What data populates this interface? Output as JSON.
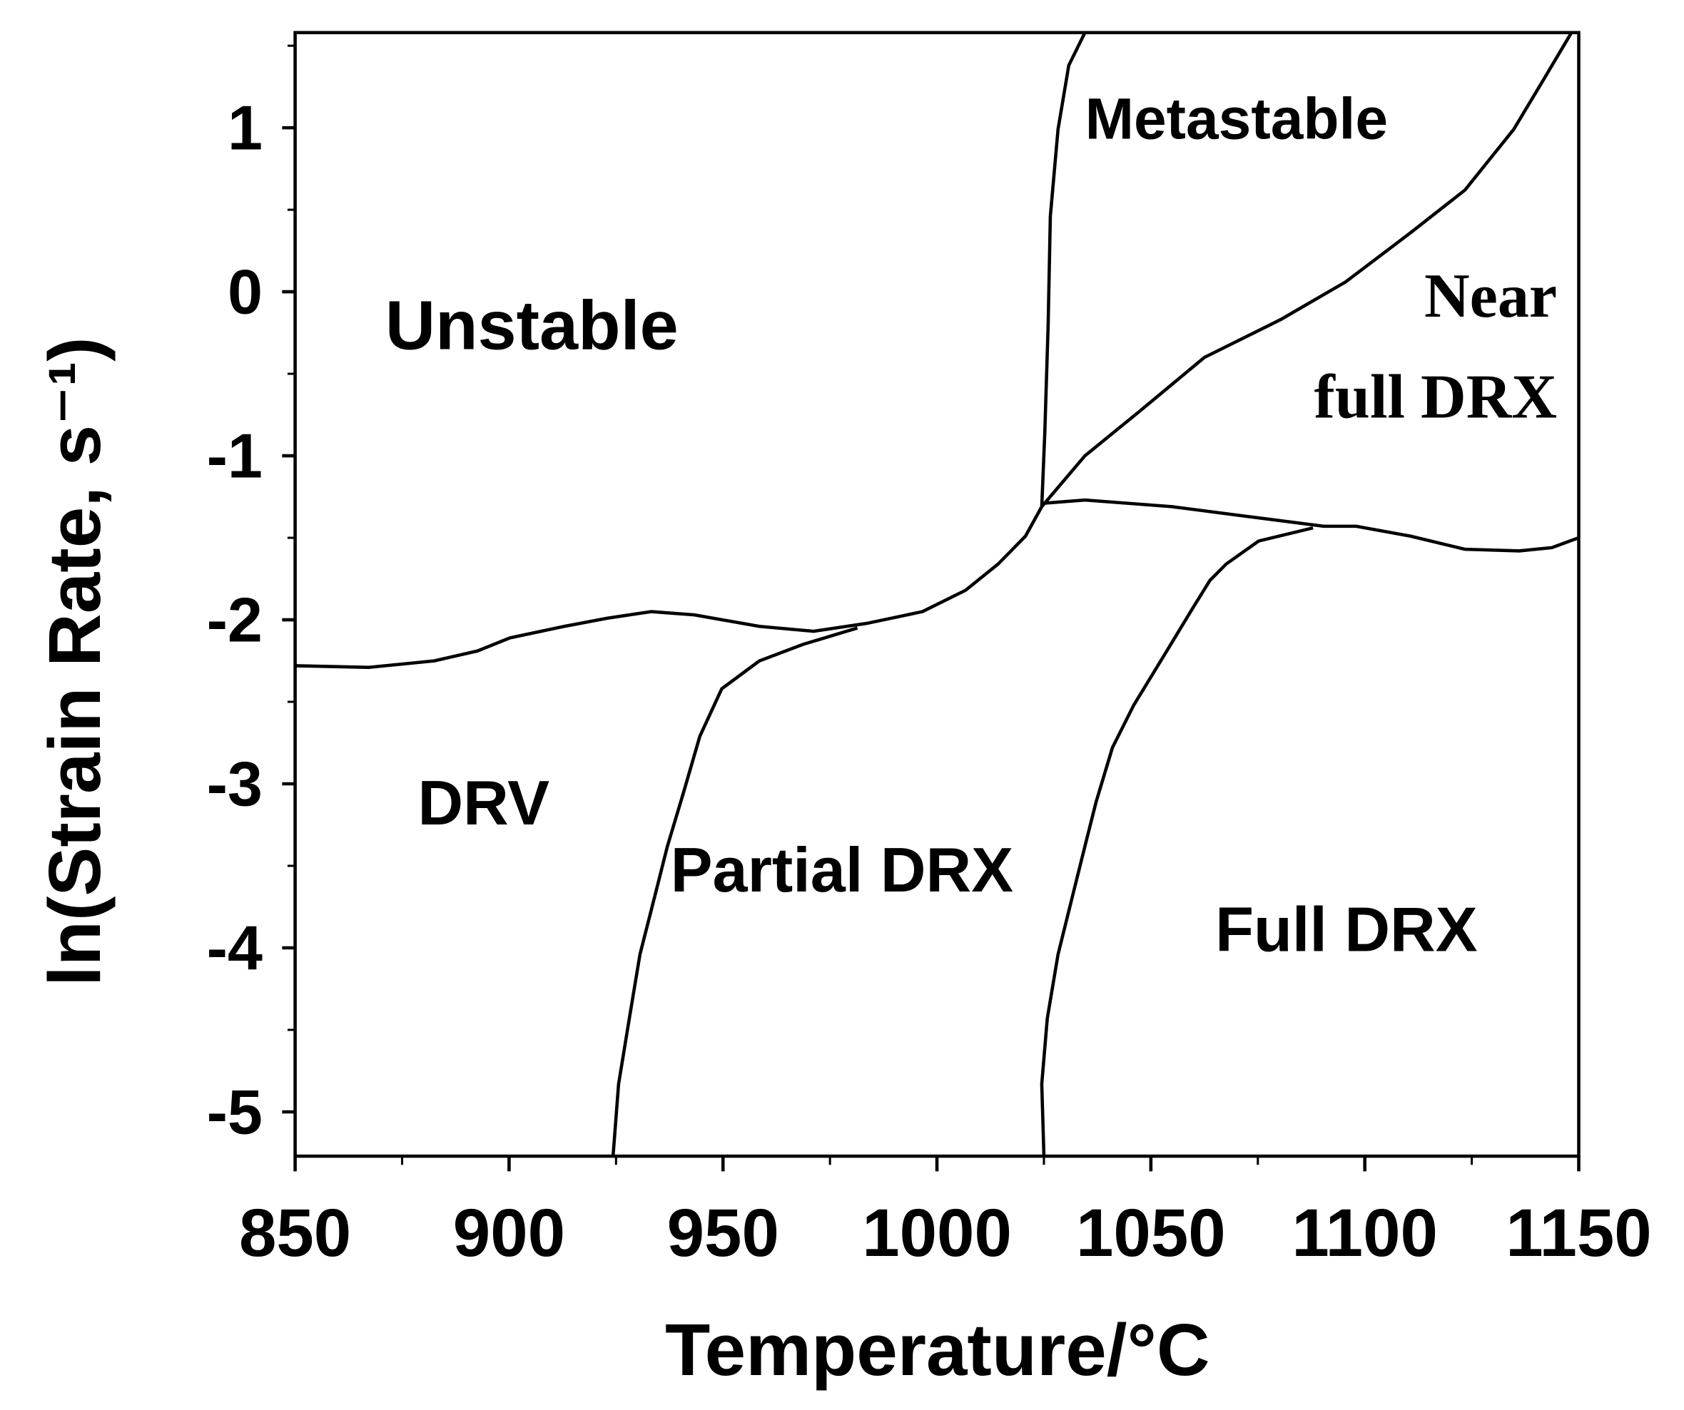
{
  "chart_data": {
    "type": "line",
    "x_label": "Temperature/°C",
    "y_label": "ln(Strain Rate, s⁻¹)",
    "xlim": [
      850,
      1150
    ],
    "ylim": [
      -5.27,
      1.58
    ],
    "xticks": [
      850,
      900,
      950,
      1000,
      1050,
      1100,
      1150
    ],
    "yticks": [
      1,
      0,
      -1,
      -2,
      -3,
      -4,
      -5
    ],
    "xminor": [
      875,
      925,
      975,
      1025,
      1075,
      1125
    ],
    "yminor": [
      1.5,
      0.5,
      -0.5,
      -1.5,
      -2.5,
      -3.5,
      -4.5
    ],
    "annotations": [
      "Unstable",
      "Metastable",
      "Near",
      "full DRX",
      "DRV",
      "Partial DRX",
      "Full DRX"
    ],
    "series": [
      {
        "color": "#000000",
        "x": [
          850,
          867.2,
          882.5,
          892.6,
          900.2,
          912.9,
          923.0,
          933.2,
          943.3,
          958.5,
          971.2,
          983.9,
          996.6,
          1006.7,
          1014.3,
          1020.7,
          1024.5
        ],
        "values": [
          -2.28,
          -2.29,
          -2.25,
          -2.19,
          -2.11,
          -2.04,
          -1.99,
          -1.95,
          -1.97,
          -2.04,
          -2.07,
          -2.02,
          -1.95,
          -1.82,
          -1.66,
          -1.49,
          -1.31
        ]
      },
      {
        "color": "#000000",
        "x": [
          924.3,
          925.6,
          928.1,
          930.6,
          934.5,
          937.0,
          940.8,
          944.6,
          949.7,
          958.5,
          968.7,
          981.4
        ],
        "values": [
          -5.27,
          -4.83,
          -4.43,
          -4.04,
          -3.64,
          -3.38,
          -3.05,
          -2.71,
          -2.42,
          -2.25,
          -2.15,
          -2.05
        ]
      },
      {
        "color": "#000000",
        "x": [
          1024.5,
          1025.2,
          1026.0,
          1026.5,
          1028.3,
          1030.8,
          1034.6
        ],
        "values": [
          -1.31,
          -0.86,
          -0.2,
          0.46,
          0.99,
          1.38,
          1.58
        ]
      },
      {
        "color": "#000000",
        "x": [
          1024.5,
          1034.6,
          1047.3,
          1062.5,
          1080.3,
          1095.5,
          1110.7,
          1123.4,
          1134.8,
          1142.4,
          1148.3
        ],
        "values": [
          -1.31,
          -1.0,
          -0.73,
          -0.4,
          -0.17,
          0.06,
          0.36,
          0.62,
          0.99,
          1.32,
          1.58
        ]
      },
      {
        "color": "#000000",
        "x": [
          1024.5,
          1034.6,
          1054.9,
          1072.7,
          1090.4,
          1098.0,
          1110.7,
          1123.4,
          1136.1,
          1143.7,
          1150
        ],
        "values": [
          -1.29,
          -1.27,
          -1.31,
          -1.37,
          -1.43,
          -1.43,
          -1.49,
          -1.57,
          -1.58,
          -1.56,
          -1.5
        ]
      },
      {
        "color": "#000000",
        "x": [
          1025.0,
          1024.5,
          1025.8,
          1028.3,
          1032.1,
          1034.6,
          1037.2,
          1041.0,
          1046.0,
          1053.7,
          1060.0,
          1063.8,
          1067.6,
          1075.2,
          1087.9
        ],
        "values": [
          -5.27,
          -4.83,
          -4.43,
          -4.04,
          -3.64,
          -3.38,
          -3.11,
          -2.78,
          -2.52,
          -2.19,
          -1.92,
          -1.76,
          -1.66,
          -1.52,
          -1.44
        ]
      }
    ]
  }
}
